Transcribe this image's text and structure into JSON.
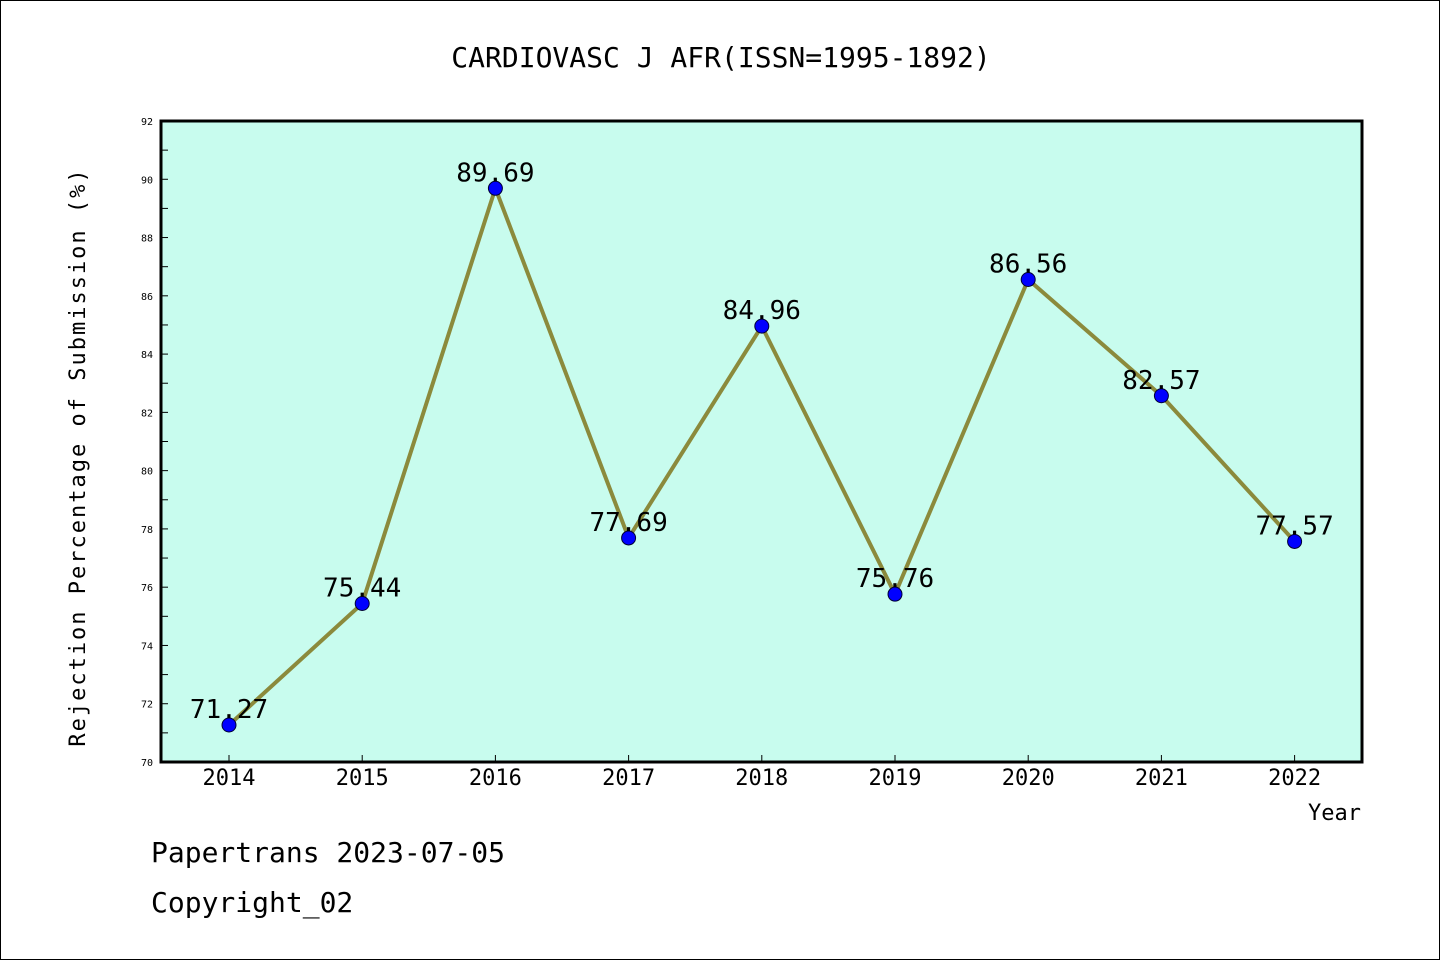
{
  "chart_data": {
    "type": "line",
    "title": "CARDIOVASC J AFR(ISSN=1995-1892)",
    "xlabel": "Year",
    "ylabel": "Rejection Percentage of Submission (%)",
    "categories": [
      "2014",
      "2015",
      "2016",
      "2017",
      "2018",
      "2019",
      "2020",
      "2021",
      "2022"
    ],
    "series": [
      {
        "values": [
          71.27,
          75.44,
          89.69,
          77.69,
          84.96,
          75.76,
          86.56,
          82.57,
          77.57
        ]
      }
    ],
    "data_labels": [
      "71.27",
      "75.44",
      "89.69",
      "77.69",
      "84.96",
      "75.76",
      "86.56",
      "82.57",
      "77.57"
    ],
    "ylim": [
      70,
      92
    ],
    "yticks": [
      "70",
      "72",
      "74",
      "76",
      "78",
      "80",
      "82",
      "84",
      "86",
      "88",
      "90",
      "92"
    ],
    "grid": false,
    "legend": "none",
    "colors": {
      "plot_background": "#c8fcee",
      "line": "#8b8a3c",
      "marker": "#0000ff"
    }
  },
  "footer": {
    "date_text": "Papertrans 2023-07-05",
    "copyright_text": "Copyright_02"
  }
}
